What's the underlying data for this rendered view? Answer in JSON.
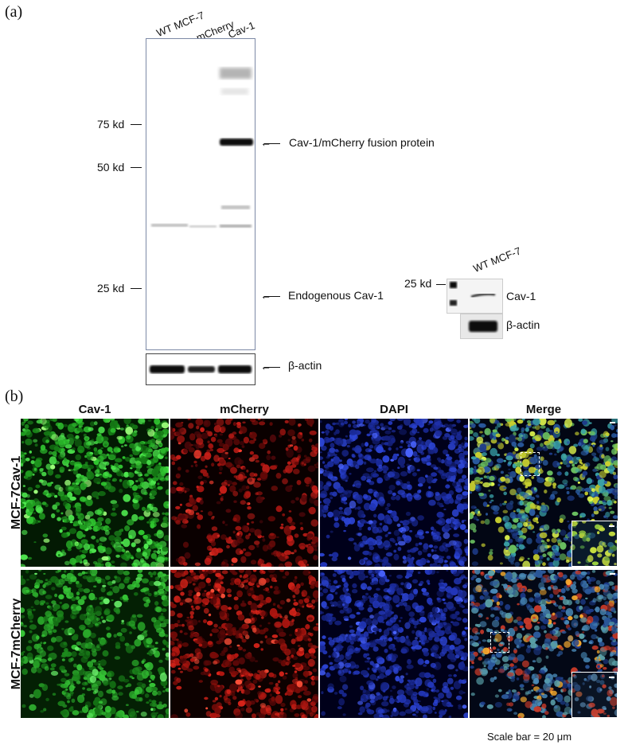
{
  "panel_a": {
    "label": "(a)",
    "lanes": [
      "WT MCF-7",
      "mCherry",
      "Cav-1"
    ],
    "markers": [
      "75 kd",
      "50 kd",
      "25 kd"
    ],
    "annotations": {
      "fusion": "Cav-1/mCherry fusion protein",
      "endogenous": "Endogenous Cav-1",
      "actin": "β-actin"
    },
    "side_blot": {
      "lane": "WT MCF-7",
      "marker": "25 kd",
      "band1": "Cav-1",
      "band2": "β-actin"
    }
  },
  "panel_b": {
    "label": "(b)",
    "columns": [
      "Cav-1",
      "mCherry",
      "DAPI",
      "Merge"
    ],
    "rows": [
      "MCF-7Cav-1",
      "MCF-7mCherry"
    ],
    "scale_bar": "Scale bar = 20 μm"
  },
  "colors": {
    "green": "#3ad13a",
    "red": "#e0281e",
    "blue": "#2a3fd0",
    "blot_border": "#7c89a6"
  }
}
